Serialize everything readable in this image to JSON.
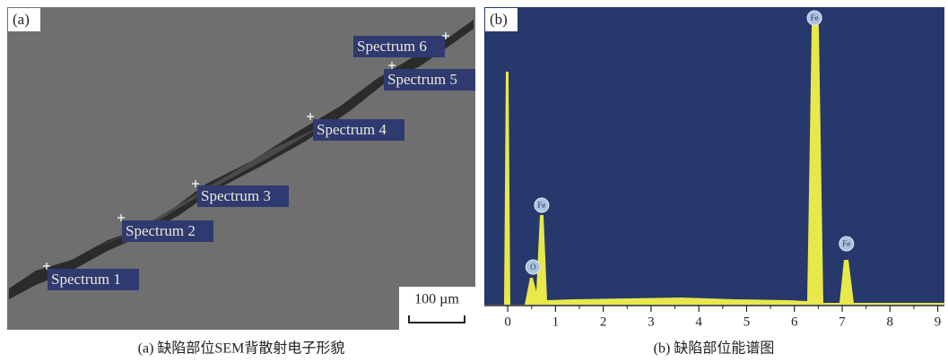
{
  "panel_a": {
    "label": "(a)",
    "spectra": [
      "Spectrum 1",
      "Spectrum 2",
      "Spectrum 3",
      "Spectrum 4",
      "Spectrum 5",
      "Spectrum 6"
    ],
    "scale_bar": "100 µm",
    "caption": "(a) 缺陷部位SEM背散射电子形貌"
  },
  "panel_b": {
    "label": "(b)",
    "xlim": [
      -0.49,
      9.14
    ],
    "xticks": [
      0,
      1,
      2,
      3,
      4,
      5,
      6,
      7,
      8,
      9
    ],
    "peaks": [
      {
        "label": "O",
        "x": 0.53
      },
      {
        "label": "Fe",
        "x": 0.71
      },
      {
        "label": "Fe",
        "x": 6.42
      },
      {
        "label": "Fe",
        "x": 7.09
      }
    ],
    "caption": "(b) 缺陷部位能谱图"
  }
}
